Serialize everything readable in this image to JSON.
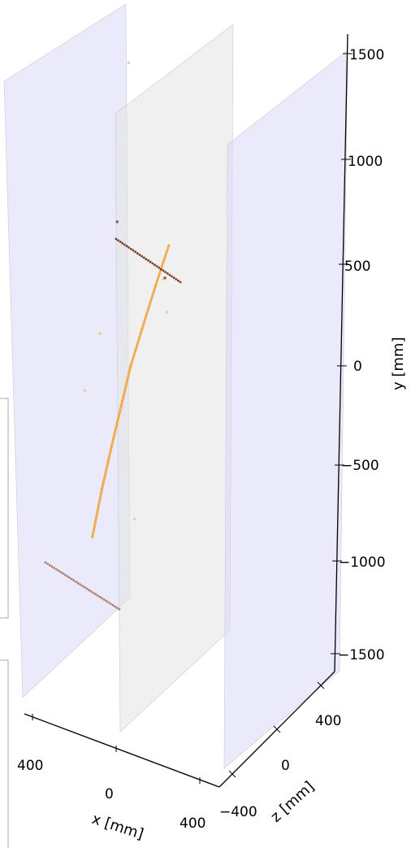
{
  "chart_data": {
    "type": "scatter",
    "projection": "3d",
    "title": "",
    "xlabel": "x [mm]",
    "ylabel": "y [mm]",
    "zlabel": "z [mm]",
    "y_ticks": [
      "1500",
      "1000",
      "500",
      "0",
      "−500",
      "−1000",
      "−1500"
    ],
    "z_ticks": [
      "400",
      "0",
      "−400"
    ],
    "x_ticks": [
      "400",
      "0",
      "400"
    ],
    "xlim": [
      -500,
      500
    ],
    "ylim": [
      -1600,
      1600
    ],
    "zlim": [
      -500,
      500
    ],
    "colormap": "YlOrBr",
    "plane_colors": [
      "#d8d8f8",
      "#e4e4e4",
      "#d8d8f8"
    ],
    "series": [
      {
        "color": "#f0a43c",
        "points": [
          [
            -120,
            -960,
            0
          ],
          [
            -70,
            -700,
            0
          ],
          [
            -20,
            -470,
            0
          ],
          [
            30,
            -250,
            0
          ],
          [
            80,
            -30,
            0
          ],
          [
            140,
            180,
            0
          ],
          [
            210,
            420,
            0
          ],
          [
            280,
            650,
            0
          ]
        ]
      },
      {
        "color": "#6b2a0c",
        "points": [
          [
            40,
            560,
            -60
          ],
          [
            220,
            560,
            200
          ]
        ]
      },
      {
        "color": "#a9705c",
        "points": [
          [
            -330,
            -1200,
            -60
          ],
          [
            -100,
            -1200,
            200
          ]
        ]
      },
      {
        "color": "#f0c080",
        "points": [
          [
            -160,
            -240,
            0
          ],
          [
            -20,
            40,
            -100
          ],
          [
            90,
            420,
            300
          ],
          [
            100,
            -790,
            0
          ],
          [
            30,
            -260,
            0
          ],
          [
            70,
            1490,
            0
          ],
          [
            250,
            470,
            0
          ]
        ]
      },
      {
        "color": "#7a3b1c",
        "points": [
          [
            10,
            670,
            0
          ],
          [
            260,
            480,
            0
          ]
        ]
      }
    ]
  }
}
